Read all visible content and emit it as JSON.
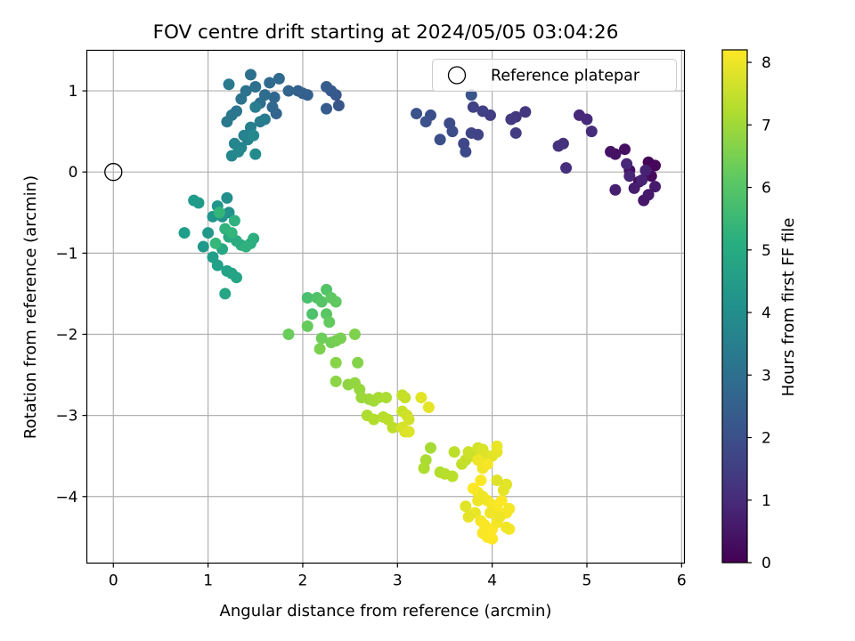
{
  "chart_data": {
    "type": "scatter",
    "title": "FOV centre drift starting at 2024/05/05 03:04:26",
    "xlabel": "Angular distance from reference (arcmin)",
    "ylabel": "Rotation from reference (arcmin)",
    "xlim": [
      -0.28,
      6.03
    ],
    "ylim": [
      -4.82,
      1.5
    ],
    "xticks": [
      0,
      1,
      2,
      3,
      4,
      5,
      6
    ],
    "yticks": [
      1,
      0,
      -1,
      -2,
      -3,
      -4
    ],
    "xtick_labels": [
      "0",
      "1",
      "2",
      "3",
      "4",
      "5",
      "6"
    ],
    "ytick_labels": [
      "1",
      "0",
      "−1",
      "−2",
      "−3",
      "−4"
    ],
    "grid": true,
    "colormap": "viridis",
    "colorbar": {
      "label": "Hours from first FF file",
      "range": [
        0,
        8.2
      ],
      "ticks": [
        0,
        1,
        2,
        3,
        4,
        5,
        6,
        7,
        8
      ],
      "tick_labels": [
        "0",
        "1",
        "2",
        "3",
        "4",
        "5",
        "6",
        "7",
        "8"
      ]
    },
    "legend": {
      "position": "top-right",
      "entries": [
        {
          "label": "Reference platepar",
          "marker": "open-circle"
        }
      ]
    },
    "reference_point": {
      "x": 0,
      "y": 0
    },
    "series": [
      {
        "points": [
          [
            5.65,
            0.12,
            0.1
          ],
          [
            5.72,
            0.08,
            0.15
          ],
          [
            5.68,
            -0.05,
            0.2
          ],
          [
            5.55,
            -0.12,
            0.25
          ],
          [
            5.45,
            0.02,
            0.3
          ],
          [
            5.4,
            0.28,
            0.35
          ],
          [
            5.3,
            0.22,
            0.4
          ],
          [
            5.25,
            0.25,
            0.45
          ],
          [
            5.6,
            -0.35,
            0.5
          ],
          [
            5.65,
            -0.28,
            0.55
          ],
          [
            5.72,
            -0.18,
            0.6
          ],
          [
            5.5,
            -0.2,
            0.65
          ],
          [
            5.3,
            -0.22,
            0.7
          ],
          [
            5.62,
            0.02,
            0.75
          ],
          [
            5.58,
            -0.1,
            0.8
          ],
          [
            5.45,
            -0.05,
            0.85
          ],
          [
            5.42,
            0.1,
            0.9
          ],
          [
            4.92,
            0.7,
            0.95
          ],
          [
            5.0,
            0.65,
            1.0
          ],
          [
            5.05,
            0.5,
            1.05
          ],
          [
            4.78,
            0.05,
            1.1
          ],
          [
            4.75,
            0.35,
            1.15
          ],
          [
            4.7,
            0.32,
            1.2
          ],
          [
            4.35,
            0.74,
            1.3
          ],
          [
            4.25,
            0.68,
            1.35
          ],
          [
            4.2,
            0.65,
            1.4
          ],
          [
            4.25,
            0.48,
            1.45
          ],
          [
            3.98,
            0.7,
            1.5
          ],
          [
            3.9,
            0.75,
            1.55
          ],
          [
            3.8,
            0.8,
            1.6
          ],
          [
            3.85,
            0.46,
            1.65
          ],
          [
            3.78,
            0.48,
            1.7
          ],
          [
            3.7,
            0.35,
            1.75
          ],
          [
            3.72,
            0.25,
            1.8
          ],
          [
            3.55,
            0.6,
            1.85
          ],
          [
            3.58,
            0.5,
            1.9
          ],
          [
            3.45,
            0.4,
            1.95
          ],
          [
            3.35,
            0.7,
            2.0
          ],
          [
            3.3,
            0.62,
            2.05
          ],
          [
            3.2,
            0.72,
            2.1
          ],
          [
            3.78,
            0.95,
            2.15
          ],
          [
            2.38,
            0.82,
            2.2
          ],
          [
            2.35,
            0.95,
            2.25
          ],
          [
            2.3,
            1.0,
            2.3
          ],
          [
            2.25,
            0.78,
            2.35
          ],
          [
            2.25,
            1.05,
            2.4
          ],
          [
            2.05,
            0.95,
            2.45
          ],
          [
            2.0,
            0.97,
            2.5
          ],
          [
            1.95,
            1.0,
            2.55
          ],
          [
            1.85,
            1.0,
            2.6
          ],
          [
            1.72,
            0.72,
            2.65
          ],
          [
            1.7,
            0.92,
            2.7
          ],
          [
            1.68,
            0.8,
            2.75
          ],
          [
            1.75,
            1.15,
            2.8
          ],
          [
            1.65,
            1.1,
            2.85
          ],
          [
            1.6,
            0.95,
            2.9
          ],
          [
            1.55,
            0.85,
            2.95
          ],
          [
            1.5,
            1.05,
            3.0
          ],
          [
            1.45,
            1.2,
            3.05
          ],
          [
            1.4,
            1.0,
            3.1
          ],
          [
            1.35,
            0.9,
            3.15
          ],
          [
            1.3,
            0.75,
            3.2
          ],
          [
            1.25,
            0.7,
            3.25
          ],
          [
            1.2,
            0.62,
            3.3
          ],
          [
            1.22,
            1.08,
            3.35
          ],
          [
            1.6,
            0.65,
            3.4
          ],
          [
            1.55,
            0.62,
            3.45
          ],
          [
            1.5,
            0.8,
            3.5
          ],
          [
            1.45,
            0.55,
            3.55
          ],
          [
            1.42,
            0.4,
            3.6
          ],
          [
            1.38,
            0.45,
            3.65
          ],
          [
            1.35,
            0.3,
            3.7
          ],
          [
            1.28,
            0.35,
            3.75
          ],
          [
            1.25,
            0.2,
            3.8
          ],
          [
            1.32,
            0.25,
            3.85
          ],
          [
            1.48,
            0.45,
            3.9
          ],
          [
            1.5,
            0.22,
            3.95
          ],
          [
            1.2,
            -0.32,
            4.1
          ],
          [
            1.22,
            -0.5,
            4.15
          ],
          [
            1.15,
            -0.55,
            4.2
          ],
          [
            1.1,
            -0.42,
            4.25
          ],
          [
            1.05,
            -0.55,
            4.3
          ],
          [
            1.0,
            -0.75,
            4.35
          ],
          [
            0.95,
            -0.92,
            4.4
          ],
          [
            0.9,
            -0.38,
            4.45
          ],
          [
            0.85,
            -0.35,
            4.5
          ],
          [
            0.75,
            -0.75,
            4.55
          ],
          [
            1.05,
            -1.05,
            4.6
          ],
          [
            1.1,
            -1.15,
            4.65
          ],
          [
            1.2,
            -1.22,
            4.7
          ],
          [
            1.25,
            -1.25,
            4.75
          ],
          [
            1.3,
            -1.3,
            4.8
          ],
          [
            1.18,
            -1.5,
            4.85
          ],
          [
            1.15,
            -0.95,
            4.9
          ],
          [
            1.22,
            -0.8,
            4.95
          ],
          [
            1.3,
            -0.85,
            5.0
          ],
          [
            1.35,
            -0.9,
            5.05
          ],
          [
            1.45,
            -0.88,
            5.1
          ],
          [
            1.48,
            -0.82,
            5.15
          ],
          [
            1.4,
            -0.92,
            5.2
          ],
          [
            1.28,
            -0.6,
            5.25
          ],
          [
            1.18,
            -0.7,
            5.3
          ],
          [
            1.25,
            -0.75,
            5.35
          ],
          [
            1.12,
            -0.5,
            5.4
          ],
          [
            1.08,
            -0.88,
            5.45
          ],
          [
            2.05,
            -1.55,
            5.8
          ],
          [
            2.1,
            -1.75,
            5.85
          ],
          [
            2.15,
            -1.55,
            5.9
          ],
          [
            2.25,
            -1.45,
            5.95
          ],
          [
            2.2,
            -1.6,
            6.0
          ],
          [
            2.25,
            -1.75,
            6.05
          ],
          [
            2.3,
            -1.55,
            6.1
          ],
          [
            2.35,
            -1.6,
            6.15
          ],
          [
            2.28,
            -1.85,
            6.2
          ],
          [
            2.05,
            -1.9,
            6.25
          ],
          [
            1.85,
            -2.0,
            6.3
          ],
          [
            2.2,
            -2.05,
            6.35
          ],
          [
            2.3,
            -2.1,
            6.4
          ],
          [
            2.35,
            -2.08,
            6.45
          ],
          [
            2.4,
            -2.05,
            6.5
          ],
          [
            2.18,
            -2.18,
            6.55
          ],
          [
            2.55,
            -2.0,
            6.6
          ],
          [
            2.58,
            -2.35,
            6.65
          ],
          [
            2.35,
            -2.35,
            6.7
          ],
          [
            2.35,
            -2.58,
            6.75
          ],
          [
            2.48,
            -2.62,
            6.8
          ],
          [
            2.55,
            -2.6,
            6.85
          ],
          [
            2.6,
            -2.68,
            6.9
          ],
          [
            2.62,
            -2.78,
            6.95
          ],
          [
            2.7,
            -2.8,
            7.0
          ],
          [
            2.75,
            -2.82,
            7.05
          ],
          [
            2.8,
            -2.78,
            7.1
          ],
          [
            2.88,
            -2.78,
            7.15
          ],
          [
            2.68,
            -3.0,
            7.2
          ],
          [
            2.75,
            -3.05,
            7.25
          ],
          [
            2.85,
            -3.02,
            7.3
          ],
          [
            2.9,
            -3.05,
            7.35
          ],
          [
            2.95,
            -3.15,
            7.4
          ],
          [
            3.05,
            -2.75,
            7.45
          ],
          [
            3.08,
            -2.78,
            7.5
          ],
          [
            3.05,
            -2.95,
            7.55
          ],
          [
            3.1,
            -3.0,
            7.6
          ],
          [
            3.12,
            -3.05,
            7.65
          ],
          [
            3.05,
            -3.15,
            7.7
          ],
          [
            3.08,
            -3.2,
            7.75
          ],
          [
            3.12,
            -3.2,
            7.8
          ],
          [
            3.25,
            -2.78,
            7.85
          ],
          [
            3.33,
            -2.9,
            7.9
          ],
          [
            3.35,
            -3.4,
            7.1
          ],
          [
            3.3,
            -3.55,
            7.15
          ],
          [
            3.28,
            -3.65,
            7.2
          ],
          [
            3.45,
            -3.7,
            7.25
          ],
          [
            3.5,
            -3.72,
            7.3
          ],
          [
            3.58,
            -3.75,
            7.35
          ],
          [
            3.6,
            -3.45,
            7.4
          ],
          [
            3.68,
            -3.6,
            7.45
          ],
          [
            3.72,
            -3.55,
            7.5
          ],
          [
            3.78,
            -3.5,
            7.55
          ],
          [
            3.75,
            -3.45,
            7.6
          ],
          [
            3.85,
            -3.4,
            7.65
          ],
          [
            3.88,
            -3.45,
            7.7
          ],
          [
            3.9,
            -3.42,
            7.75
          ],
          [
            3.95,
            -3.5,
            7.8
          ],
          [
            4.0,
            -3.5,
            7.85
          ],
          [
            4.05,
            -3.45,
            7.9
          ],
          [
            4.05,
            -3.38,
            7.95
          ],
          [
            3.85,
            -3.55,
            8.0
          ],
          [
            3.9,
            -3.65,
            8.05
          ],
          [
            3.95,
            -3.6,
            8.1
          ],
          [
            3.88,
            -3.8,
            8.15
          ],
          [
            3.8,
            -3.9,
            8.2
          ],
          [
            3.85,
            -3.95,
            8.1
          ],
          [
            3.9,
            -4.0,
            8.0
          ],
          [
            3.95,
            -4.05,
            8.05
          ],
          [
            4.0,
            -4.1,
            8.1
          ],
          [
            4.05,
            -4.15,
            8.15
          ],
          [
            4.1,
            -4.05,
            8.2
          ],
          [
            4.15,
            -4.2,
            8.15
          ],
          [
            4.18,
            -4.15,
            8.1
          ],
          [
            4.12,
            -3.92,
            7.9
          ],
          [
            4.15,
            -3.85,
            7.85
          ],
          [
            4.05,
            -3.8,
            7.8
          ],
          [
            3.82,
            -4.2,
            7.95
          ],
          [
            3.75,
            -4.25,
            7.9
          ],
          [
            3.72,
            -4.12,
            7.85
          ],
          [
            3.88,
            -4.3,
            8.1
          ],
          [
            3.92,
            -4.35,
            8.15
          ],
          [
            4.0,
            -4.4,
            8.2
          ],
          [
            4.05,
            -4.32,
            8.1
          ],
          [
            3.95,
            -4.5,
            8.2
          ],
          [
            4.0,
            -4.52,
            8.2
          ],
          [
            3.9,
            -4.45,
            8.15
          ],
          [
            4.18,
            -4.4,
            8.1
          ],
          [
            4.15,
            -4.38,
            8.05
          ],
          [
            4.08,
            -4.25,
            8.0
          ],
          [
            3.98,
            -4.2,
            8.05
          ],
          [
            3.85,
            -4.05,
            8.0
          ]
        ]
      }
    ]
  }
}
